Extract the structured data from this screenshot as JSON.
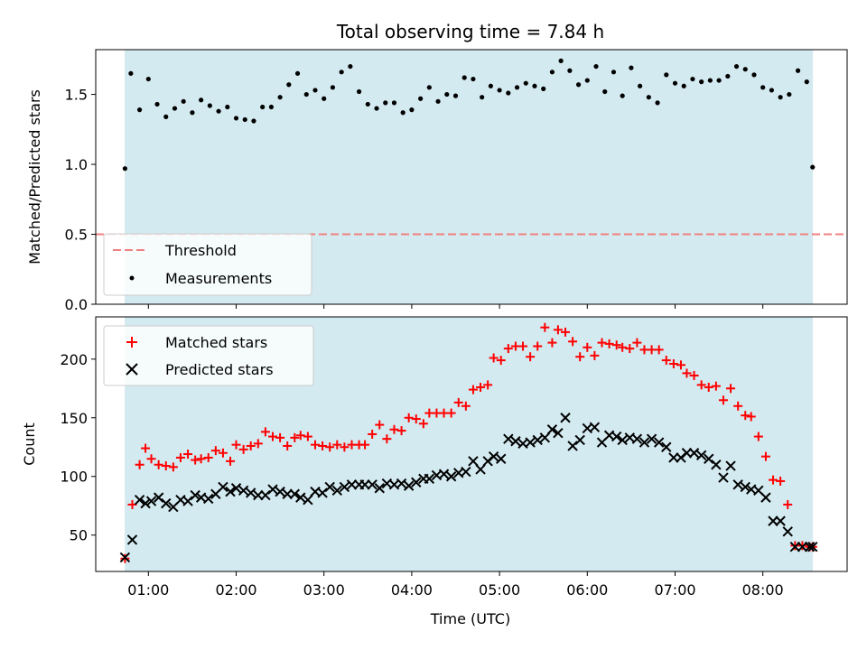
{
  "chart_data": [
    {
      "type": "scatter",
      "title": "Total observing time = 7.84 h",
      "xlabel": "",
      "ylabel": "Matched/Predicted stars",
      "ylim": [
        0,
        1.82
      ],
      "yticks": [
        "0.0",
        "0.5",
        "1.0",
        "1.5"
      ],
      "ytick_values": [
        0,
        0.5,
        1.0,
        1.5
      ],
      "xlim_hours": [
        0.4,
        8.96
      ],
      "shaded_span_hours": [
        0.73,
        8.57
      ],
      "shade_color": "#d3eaf0",
      "legend_position": "lower-left",
      "series": [
        {
          "name": "Threshold",
          "kind": "hline",
          "value": 0.5,
          "color": "#f08080"
        },
        {
          "name": "Measurements",
          "kind": "points",
          "color": "#000000",
          "x": [
            "00:44",
            "00:48",
            "00:54",
            "01:00",
            "01:06",
            "01:12",
            "01:18",
            "01:24",
            "01:30",
            "01:36",
            "01:42",
            "01:48",
            "01:54",
            "02:00",
            "02:06",
            "02:12",
            "02:18",
            "02:24",
            "02:30",
            "02:36",
            "02:42",
            "02:48",
            "02:54",
            "03:00",
            "03:06",
            "03:12",
            "03:18",
            "03:24",
            "03:30",
            "03:36",
            "03:42",
            "03:48",
            "03:54",
            "04:00",
            "04:06",
            "04:12",
            "04:18",
            "04:24",
            "04:30",
            "04:36",
            "04:42",
            "04:48",
            "04:54",
            "05:00",
            "05:06",
            "05:12",
            "05:18",
            "05:24",
            "05:30",
            "05:36",
            "05:42",
            "05:48",
            "05:54",
            "06:00",
            "06:06",
            "06:12",
            "06:18",
            "06:24",
            "06:30",
            "06:36",
            "06:42",
            "06:48",
            "06:54",
            "07:00",
            "07:06",
            "07:12",
            "07:18",
            "07:24",
            "07:30",
            "07:36",
            "07:42",
            "07:48",
            "07:54",
            "08:00",
            "08:06",
            "08:12",
            "08:18",
            "08:24",
            "08:30",
            "08:34"
          ],
          "y": [
            0.97,
            1.65,
            1.39,
            1.61,
            1.43,
            1.34,
            1.4,
            1.45,
            1.37,
            1.46,
            1.42,
            1.38,
            1.41,
            1.33,
            1.32,
            1.31,
            1.41,
            1.41,
            1.48,
            1.57,
            1.65,
            1.5,
            1.53,
            1.47,
            1.55,
            1.66,
            1.7,
            1.52,
            1.43,
            1.4,
            1.44,
            1.44,
            1.37,
            1.39,
            1.47,
            1.55,
            1.45,
            1.5,
            1.49,
            1.62,
            1.61,
            1.48,
            1.56,
            1.53,
            1.51,
            1.55,
            1.58,
            1.56,
            1.54,
            1.66,
            1.74,
            1.67,
            1.57,
            1.6,
            1.7,
            1.52,
            1.66,
            1.49,
            1.69,
            1.56,
            1.48,
            1.44,
            1.64,
            1.58,
            1.56,
            1.61,
            1.59,
            1.6,
            1.6,
            1.63,
            1.7,
            1.68,
            1.64,
            1.55,
            1.53,
            1.48,
            1.5,
            1.67,
            1.59,
            0.98
          ]
        }
      ]
    },
    {
      "type": "scatter",
      "title": "",
      "xlabel": "Time (UTC)",
      "ylabel": "Count",
      "ylim": [
        19,
        236
      ],
      "yticks": [
        "50",
        "100",
        "150",
        "200"
      ],
      "ytick_values": [
        50,
        100,
        150,
        200
      ],
      "xticks": [
        "01:00",
        "02:00",
        "03:00",
        "04:00",
        "05:00",
        "06:00",
        "07:00",
        "08:00"
      ],
      "xtick_hours": [
        1,
        2,
        3,
        4,
        5,
        6,
        7,
        8
      ],
      "xlim_hours": [
        0.4,
        8.96
      ],
      "shaded_span_hours": [
        0.73,
        8.57
      ],
      "shade_color": "#d3eaf0",
      "legend_position": "upper-left",
      "series": [
        {
          "name": "Matched stars",
          "marker": "plus",
          "color": "#ff0000",
          "x": [
            "00:44",
            "00:49",
            "00:54",
            "00:58",
            "01:02",
            "01:07",
            "01:12",
            "01:17",
            "01:22",
            "01:27",
            "01:32",
            "01:36",
            "01:41",
            "01:46",
            "01:51",
            "01:56",
            "02:00",
            "02:05",
            "02:10",
            "02:15",
            "02:20",
            "02:25",
            "02:30",
            "02:35",
            "02:40",
            "02:44",
            "02:49",
            "02:54",
            "02:59",
            "03:04",
            "03:09",
            "03:14",
            "03:19",
            "03:24",
            "03:28",
            "03:33",
            "03:38",
            "03:43",
            "03:48",
            "03:53",
            "03:58",
            "04:03",
            "04:08",
            "04:12",
            "04:17",
            "04:22",
            "04:27",
            "04:32",
            "04:37",
            "04:42",
            "04:47",
            "04:52",
            "04:56",
            "05:01",
            "05:06",
            "05:11",
            "05:16",
            "05:21",
            "05:26",
            "05:31",
            "05:36",
            "05:40",
            "05:45",
            "05:50",
            "05:55",
            "06:00",
            "06:05",
            "06:10",
            "06:15",
            "06:20",
            "06:24",
            "06:29",
            "06:34",
            "06:39",
            "06:44",
            "06:49",
            "06:54",
            "06:59",
            "07:04",
            "07:08",
            "07:13",
            "07:18",
            "07:23",
            "07:28",
            "07:33",
            "07:38",
            "07:43",
            "07:48",
            "07:52",
            "07:57",
            "08:02",
            "08:07",
            "08:12",
            "08:17",
            "08:22",
            "08:27",
            "08:32",
            "08:34"
          ],
          "y": [
            30,
            76,
            110,
            124,
            115,
            110,
            109,
            108,
            116,
            119,
            114,
            115,
            116,
            122,
            120,
            113,
            127,
            123,
            126,
            128,
            138,
            134,
            133,
            126,
            133,
            135,
            134,
            127,
            126,
            125,
            127,
            125,
            127,
            127,
            127,
            136,
            144,
            132,
            140,
            139,
            150,
            149,
            145,
            154,
            154,
            154,
            154,
            163,
            160,
            174,
            176,
            178,
            201,
            199,
            209,
            211,
            211,
            202,
            211,
            227,
            214,
            225,
            223,
            215,
            202,
            210,
            203,
            214,
            213,
            212,
            210,
            209,
            214,
            208,
            208,
            208,
            199,
            196,
            195,
            188,
            186,
            178,
            176,
            177,
            165,
            175,
            160,
            152,
            151,
            134,
            117,
            97,
            96,
            76,
            41,
            41,
            40,
            40
          ]
        },
        {
          "name": "Predicted stars",
          "marker": "x",
          "color": "#000000",
          "x": [
            "00:44",
            "00:49",
            "00:54",
            "00:58",
            "01:02",
            "01:07",
            "01:12",
            "01:17",
            "01:22",
            "01:27",
            "01:32",
            "01:36",
            "01:41",
            "01:46",
            "01:51",
            "01:56",
            "02:00",
            "02:05",
            "02:10",
            "02:15",
            "02:20",
            "02:25",
            "02:30",
            "02:35",
            "02:40",
            "02:44",
            "02:49",
            "02:54",
            "02:59",
            "03:04",
            "03:09",
            "03:14",
            "03:19",
            "03:24",
            "03:28",
            "03:33",
            "03:38",
            "03:43",
            "03:48",
            "03:53",
            "03:58",
            "04:03",
            "04:08",
            "04:12",
            "04:17",
            "04:22",
            "04:27",
            "04:32",
            "04:37",
            "04:42",
            "04:47",
            "04:52",
            "04:56",
            "05:01",
            "05:06",
            "05:11",
            "05:16",
            "05:21",
            "05:26",
            "05:31",
            "05:36",
            "05:40",
            "05:45",
            "05:50",
            "05:55",
            "06:00",
            "06:05",
            "06:10",
            "06:15",
            "06:20",
            "06:24",
            "06:29",
            "06:34",
            "06:39",
            "06:44",
            "06:49",
            "06:54",
            "06:59",
            "07:04",
            "07:08",
            "07:13",
            "07:18",
            "07:23",
            "07:28",
            "07:33",
            "07:38",
            "07:43",
            "07:48",
            "07:52",
            "07:57",
            "08:02",
            "08:07",
            "08:12",
            "08:17",
            "08:22",
            "08:27",
            "08:32",
            "08:34"
          ],
          "y": [
            31,
            46,
            80,
            77,
            79,
            82,
            77,
            74,
            80,
            79,
            84,
            82,
            81,
            85,
            91,
            87,
            90,
            88,
            86,
            84,
            84,
            89,
            87,
            85,
            85,
            82,
            80,
            87,
            86,
            91,
            88,
            91,
            93,
            93,
            93,
            93,
            90,
            94,
            93,
            94,
            92,
            95,
            98,
            98,
            101,
            102,
            100,
            103,
            104,
            113,
            106,
            113,
            117,
            115,
            132,
            130,
            128,
            129,
            131,
            133,
            140,
            137,
            150,
            126,
            131,
            141,
            142,
            129,
            135,
            134,
            131,
            133,
            132,
            129,
            132,
            129,
            125,
            116,
            116,
            120,
            120,
            118,
            115,
            110,
            99,
            109,
            93,
            91,
            89,
            88,
            82,
            62,
            62,
            53,
            40,
            40,
            40,
            40
          ]
        }
      ]
    }
  ]
}
